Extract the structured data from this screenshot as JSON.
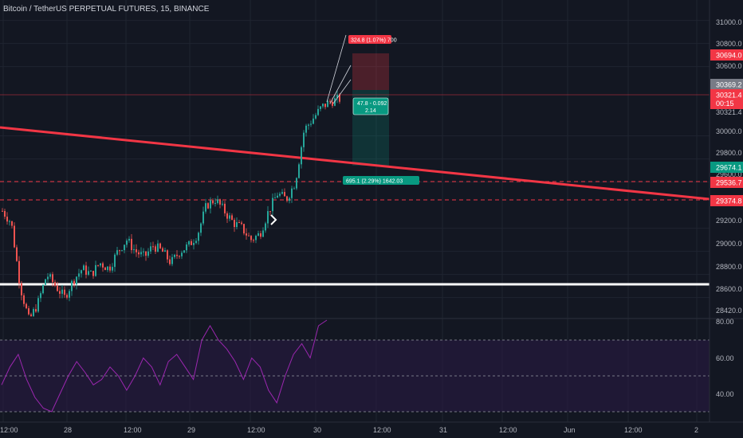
{
  "header": {
    "title": "Bitcoin / TetherUS PERPETUAL FUTURES, 15, BINANCE"
  },
  "colors": {
    "background": "#131722",
    "up": "#26a69a",
    "down": "#ef5350",
    "trendline": "#f23645",
    "support": "#ffffff",
    "rsi": "#9c27b0",
    "rsi_band": "#2a1a45"
  },
  "price_axis": {
    "ticks": [
      "31000.0",
      "30800.0",
      "30600.0",
      "30321.4",
      "30000.0",
      "29800.0",
      "29600.0",
      "29200.0",
      "29000.0",
      "28800.0",
      "28600.0",
      "28420.0"
    ],
    "tags": [
      {
        "text": "30694.0",
        "color": "#f23645"
      },
      {
        "text": "30369.2",
        "color": "#787b86"
      },
      {
        "text": "30321.4",
        "color": "#f23645"
      },
      {
        "text": "00:15",
        "color": "#f23645"
      },
      {
        "text": "29674.1",
        "color": "#089981"
      },
      {
        "text": "29536.7",
        "color": "#f23645"
      },
      {
        "text": "29374.8",
        "color": "#f23645"
      }
    ]
  },
  "rsi_axis": {
    "ticks": [
      "80.00",
      "60.00",
      "40.00"
    ]
  },
  "time_axis": {
    "ticks": [
      "12:00",
      "28",
      "12:00",
      "29",
      "12:00",
      "30",
      "12:00",
      "31",
      "12:00",
      "Jun",
      "12:00",
      "2"
    ]
  },
  "annotations": {
    "target_label": "324.8 (1.07%) 700",
    "position_label_1": "47.8 - 0.092",
    "position_label_2": "2.14",
    "measure_label": "695.1 (2.29%) 1642.03"
  },
  "chart_data": {
    "type": "candlestick",
    "title": "Bitcoin / TetherUS PERPETUAL FUTURES, 15, BINANCE",
    "y_ticks": [
      28420,
      28600,
      28800,
      29000,
      29200,
      29600,
      29800,
      30000,
      30321.4,
      30600,
      30800,
      31000
    ],
    "x_ticks": [
      "12:00",
      "28",
      "12:00",
      "29",
      "12:00",
      "30",
      "12:00",
      "31",
      "12:00",
      "Jun",
      "12:00",
      "2"
    ],
    "price_path": [
      29350,
      29250,
      28700,
      28400,
      28550,
      28800,
      28700,
      28600,
      28750,
      28850,
      28800,
      28900,
      28850,
      29000,
      29100,
      29000,
      28950,
      29050,
      29000,
      28900,
      29000,
      29050,
      29150,
      29400,
      29450,
      29350,
      29250,
      29200,
      29100,
      29150,
      29350,
      29500,
      29450,
      29600,
      30050,
      30150,
      30250,
      30300,
      30320
    ],
    "horizontal_levels": [
      {
        "value": 29536.7,
        "style": "dashed",
        "color": "#f23645"
      },
      {
        "value": 29374.8,
        "style": "dashed",
        "color": "#f23645"
      },
      {
        "value": 28620,
        "style": "solid",
        "color": "#ffffff"
      }
    ],
    "trendline": {
      "from": 30020,
      "to": 29380,
      "color": "#f23645"
    },
    "rsi": {
      "ylim": [
        25,
        85
      ],
      "levels": [
        70,
        50,
        30
      ],
      "path": [
        45,
        55,
        62,
        48,
        38,
        32,
        30,
        40,
        50,
        58,
        52,
        45,
        48,
        55,
        50,
        42,
        50,
        60,
        55,
        45,
        58,
        62,
        55,
        48,
        70,
        78,
        70,
        65,
        58,
        48,
        60,
        55,
        42,
        35,
        50,
        62,
        68,
        60,
        78,
        82
      ]
    }
  }
}
